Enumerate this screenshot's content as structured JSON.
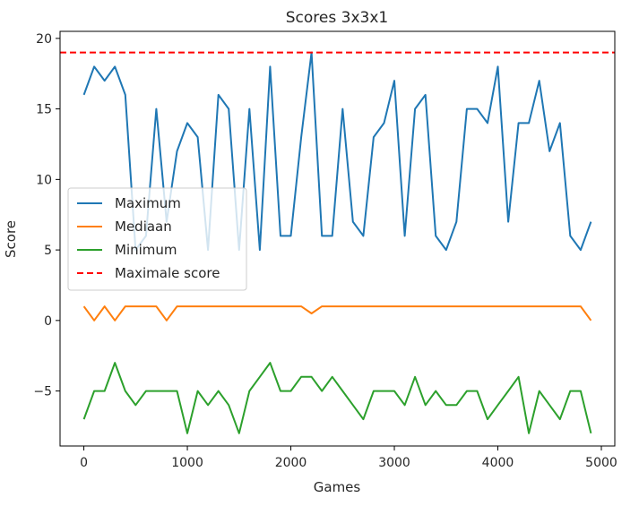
{
  "chart_data": {
    "type": "line",
    "title": "Scores 3x3x1",
    "xlabel": "Games",
    "ylabel": "Score",
    "xlim": [
      -230,
      5130
    ],
    "ylim": [
      -8.9,
      20.5
    ],
    "xticks": [
      0,
      1000,
      2000,
      3000,
      4000,
      5000
    ],
    "yticks": [
      -5,
      0,
      5,
      10,
      15,
      20
    ],
    "grid": false,
    "legend_position": "center-left",
    "x": [
      0,
      100,
      200,
      300,
      400,
      500,
      600,
      700,
      800,
      900,
      1000,
      1100,
      1200,
      1300,
      1400,
      1500,
      1600,
      1700,
      1800,
      1900,
      2000,
      2100,
      2200,
      2300,
      2400,
      2500,
      2600,
      2700,
      2800,
      2900,
      3000,
      3100,
      3200,
      3300,
      3400,
      3500,
      3600,
      3700,
      3800,
      3900,
      4000,
      4100,
      4200,
      4300,
      4400,
      4500,
      4600,
      4700,
      4800,
      4900
    ],
    "series": [
      {
        "name": "Maximum",
        "color": "#1f77b4",
        "style": "solid",
        "values": [
          16,
          18,
          17,
          18,
          16,
          5,
          6,
          15,
          7,
          12,
          14,
          13,
          5,
          16,
          15,
          5,
          15,
          5,
          18,
          6,
          6,
          13,
          19,
          6,
          6,
          15,
          7,
          6,
          13,
          14,
          17,
          6,
          15,
          16,
          6,
          5,
          7,
          15,
          15,
          14,
          18,
          7,
          14,
          14,
          17,
          12,
          14,
          6,
          5,
          7
        ]
      },
      {
        "name": "Mediaan",
        "color": "#ff7f0e",
        "style": "solid",
        "values": [
          1,
          0,
          1,
          0,
          1,
          1,
          1,
          1,
          0,
          1,
          1,
          1,
          1,
          1,
          1,
          1,
          1,
          1,
          1,
          1,
          1,
          1,
          0.5,
          1,
          1,
          1,
          1,
          1,
          1,
          1,
          1,
          1,
          1,
          1,
          1,
          1,
          1,
          1,
          1,
          1,
          1,
          1,
          1,
          1,
          1,
          1,
          1,
          1,
          1,
          0
        ]
      },
      {
        "name": "Minimum",
        "color": "#2ca02c",
        "style": "solid",
        "values": [
          -7,
          -5,
          -5,
          -3,
          -5,
          -6,
          -5,
          -5,
          -5,
          -5,
          -8,
          -5,
          -6,
          -5,
          -6,
          -8,
          -5,
          -4,
          -3,
          -5,
          -5,
          -4,
          -4,
          -5,
          -4,
          -5,
          -6,
          -7,
          -5,
          -5,
          -5,
          -6,
          -4,
          -6,
          -5,
          -6,
          -6,
          -5,
          -5,
          -7,
          -6,
          -5,
          -4,
          -8,
          -5,
          -6,
          -7,
          -5,
          -5,
          -8
        ]
      },
      {
        "name": "Maximale score",
        "color": "#ff0000",
        "style": "dashed",
        "constant": 19
      }
    ]
  }
}
